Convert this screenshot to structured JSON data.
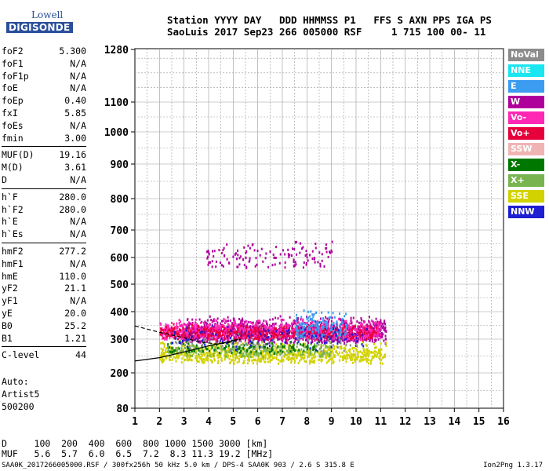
{
  "logo": {
    "line1": "Lowell",
    "line2": "DIGISONDE"
  },
  "header": {
    "line1": "Station YYYY DAY   DDD HHMMSS P1   FFS S AXN PPS IGA PS",
    "line2": "SaoLuis 2017 Sep23 266 005000 RSF     1 715 100 00- 11"
  },
  "params": [
    {
      "k": "foF2",
      "v": "5.300"
    },
    {
      "k": "foF1",
      "v": "N/A"
    },
    {
      "k": "foF1p",
      "v": "N/A"
    },
    {
      "k": "foE",
      "v": "N/A"
    },
    {
      "k": "foEp",
      "v": "0.40"
    },
    {
      "k": "fxI",
      "v": "5.85"
    },
    {
      "k": "foEs",
      "v": "N/A"
    },
    {
      "k": "fmin",
      "v": "3.00"
    },
    {
      "k": "MUF(D)",
      "v": "19.16",
      "sep": true
    },
    {
      "k": "M(D)",
      "v": "3.61"
    },
    {
      "k": "D",
      "v": "N/A"
    },
    {
      "k": "h`F",
      "v": "280.0",
      "sep": true
    },
    {
      "k": "h`F2",
      "v": "280.0"
    },
    {
      "k": "h`E",
      "v": "N/A"
    },
    {
      "k": "h`Es",
      "v": "N/A"
    },
    {
      "k": "hmF2",
      "v": "277.2",
      "sep": true
    },
    {
      "k": "hmF1",
      "v": "N/A"
    },
    {
      "k": "hmE",
      "v": "110.0"
    },
    {
      "k": "yF2",
      "v": "21.1"
    },
    {
      "k": "yF1",
      "v": "N/A"
    },
    {
      "k": "yE",
      "v": "20.0"
    },
    {
      "k": "B0",
      "v": "25.2"
    },
    {
      "k": "B1",
      "v": "1.21"
    },
    {
      "k": "C-level",
      "v": "44",
      "sep": true
    }
  ],
  "auto": {
    "line1": "Auto:",
    "line2": "Artist5",
    "line3": "500200"
  },
  "legend": [
    {
      "label": "NoVal",
      "color": "#8c8c8c"
    },
    {
      "label": "NNE",
      "color": "#19e6f0"
    },
    {
      "label": "E",
      "color": "#3c9cf0"
    },
    {
      "label": "W",
      "color": "#b0009c"
    },
    {
      "label": "Vo-",
      "color": "#ff28b4"
    },
    {
      "label": "Vo+",
      "color": "#e6003c"
    },
    {
      "label": "SSW",
      "color": "#f0b4b4"
    },
    {
      "label": "X-",
      "color": "#007800"
    },
    {
      "label": "X+",
      "color": "#78b450"
    },
    {
      "label": "SSE",
      "color": "#d2d200"
    },
    {
      "label": "NNW",
      "color": "#1e1ed2"
    }
  ],
  "muf_table": {
    "line1": "D     100  200  400  600  800 1000 1500 3000 [km]",
    "line2": "MUF   5.6  5.7  6.0  6.5  7.2  8.3 11.3 19.2 [MHz]"
  },
  "footer": "SAA0K_2017266005000.RSF / 300fx256h 50 kHz 5.0 km / DPS-4 SAA0K 903 / 2.6 S 315.8 E",
  "version": "Ion2Png 1.3.17",
  "chart_data": {
    "type": "scatter",
    "title": "",
    "xlabel": "",
    "ylabel": "",
    "xlim": [
      1,
      16
    ],
    "ylim": [
      80,
      1280
    ],
    "x_ticks": [
      1,
      2,
      3,
      4,
      5,
      6,
      7,
      8,
      9,
      10,
      11,
      12,
      13,
      14,
      15,
      16
    ],
    "y_ticks": [
      80,
      200,
      300,
      400,
      500,
      600,
      700,
      800,
      900,
      1000,
      1100,
      1280
    ],
    "grid": true,
    "legend_position": "right",
    "series": [
      {
        "name": "W",
        "color": "#b0009c",
        "regions": [
          {
            "x": [
              2.9,
              11.2
            ],
            "y": [
              290,
              390
            ],
            "density": 1300
          },
          {
            "x": [
              3.9,
              9.0
            ],
            "y": [
              560,
              680
            ],
            "density": 140
          }
        ]
      },
      {
        "name": "Vo-",
        "color": "#ff28b4",
        "regions": [
          {
            "x": [
              2.0,
              11.0
            ],
            "y": [
              300,
              380
            ],
            "density": 900
          }
        ]
      },
      {
        "name": "Vo+",
        "color": "#e6003c",
        "regions": [
          {
            "x": [
              2.0,
              10.8
            ],
            "y": [
              300,
              360
            ],
            "density": 450
          }
        ]
      },
      {
        "name": "E",
        "color": "#3c9cf0",
        "regions": [
          {
            "x": [
              7.5,
              9.6
            ],
            "y": [
              300,
              420
            ],
            "density": 160
          }
        ]
      },
      {
        "name": "SSE",
        "color": "#d2d200",
        "regions": [
          {
            "x": [
              2.0,
              11.2
            ],
            "y": [
              230,
              300
            ],
            "density": 900
          }
        ]
      },
      {
        "name": "X+",
        "color": "#78b450",
        "regions": [
          {
            "x": [
              2.3,
              9.0
            ],
            "y": [
              250,
              300
            ],
            "density": 250
          }
        ]
      },
      {
        "name": "X-",
        "color": "#007800",
        "regions": [
          {
            "x": [
              2.3,
              8.5
            ],
            "y": [
              260,
              300
            ],
            "density": 120
          }
        ]
      },
      {
        "name": "NNW",
        "color": "#1e1ed2",
        "regions": [
          {
            "x": [
              2.5,
              10.5
            ],
            "y": [
              270,
              360
            ],
            "density": 120
          }
        ]
      },
      {
        "name": "NoVal",
        "color": "#8c8c8c",
        "regions": [
          {
            "x": [
              2.5,
              10.0
            ],
            "y": [
              260,
              330
            ],
            "density": 50
          }
        ]
      }
    ],
    "profile_curves": [
      {
        "name": "virtual-height",
        "style": "solid",
        "x": [
          1.0,
          2.0,
          3.0,
          4.0,
          4.8,
          5.2
        ],
        "y": [
          235,
          245,
          262,
          280,
          292,
          300
        ]
      },
      {
        "name": "true-height",
        "style": "dashed",
        "x": [
          1.0,
          2.0,
          3.0,
          3.6,
          4.4,
          5.0,
          5.3
        ],
        "y": [
          348,
          325,
          305,
          292,
          285,
          292,
          300
        ]
      }
    ]
  }
}
